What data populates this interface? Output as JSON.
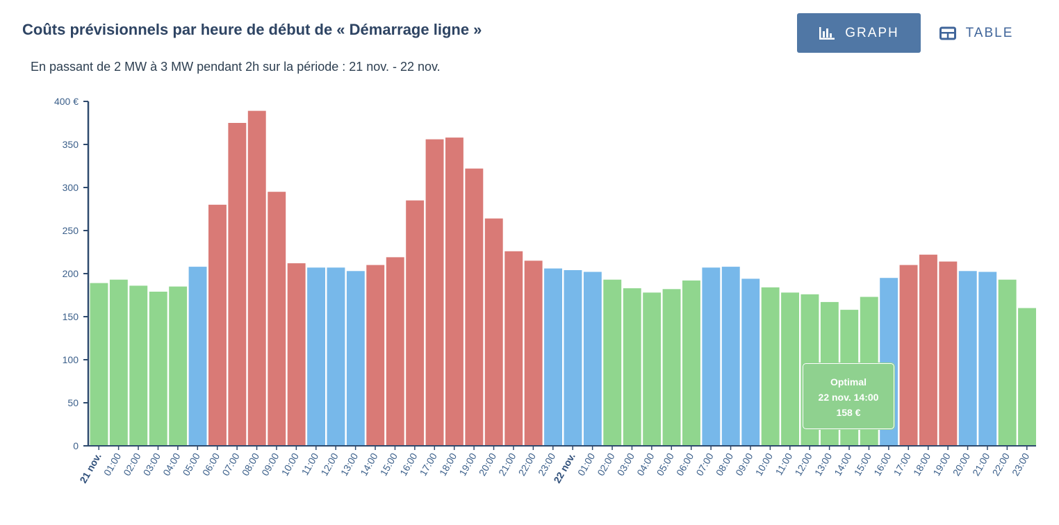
{
  "header": {
    "title": "Coûts prévisionnels par heure de début de « Démarrage ligne »",
    "subtitle": "En passant de 2 MW à 3 MW pendant 2h sur la période : 21 nov. - 22 nov."
  },
  "view_toggle": {
    "graph_label": "GRAPH",
    "table_label": "TABLE",
    "active": "graph"
  },
  "colors": {
    "green": "#90d68e",
    "blue": "#77b8ea",
    "red": "#d97a76",
    "axis": "#2e4a6e",
    "graph_button": "#5077a5"
  },
  "tooltip": {
    "title": "Optimal",
    "datetime": "22 nov. 14:00",
    "value": "158 €"
  },
  "chart_data": {
    "type": "bar",
    "title": "Coûts prévisionnels par heure de début de « Démarrage ligne »",
    "xlabel": "",
    "ylabel": "",
    "ylim": [
      0,
      400
    ],
    "yticks": [
      "0",
      "50",
      "100",
      "150",
      "200",
      "250",
      "300",
      "350",
      "400 €"
    ],
    "ytick_values": [
      0,
      50,
      100,
      150,
      200,
      250,
      300,
      350,
      400
    ],
    "grid": false,
    "categories": [
      "21 nov.",
      "01:00",
      "02:00",
      "03:00",
      "04:00",
      "05:00",
      "06:00",
      "07:00",
      "08:00",
      "09:00",
      "10:00",
      "11:00",
      "12:00",
      "13:00",
      "14:00",
      "15:00",
      "16:00",
      "17:00",
      "18:00",
      "19:00",
      "20:00",
      "21:00",
      "22:00",
      "23:00",
      "22 nov.",
      "01:00",
      "02:00",
      "03:00",
      "04:00",
      "05:00",
      "06:00",
      "07:00",
      "08:00",
      "09:00",
      "10:00",
      "11:00",
      "12:00",
      "13:00",
      "14:00",
      "15:00",
      "16:00",
      "17:00",
      "18:00",
      "19:00",
      "20:00",
      "21:00",
      "22:00",
      "23:00"
    ],
    "bold_categories": [
      "21 nov.",
      "22 nov."
    ],
    "values": [
      189,
      193,
      186,
      179,
      185,
      208,
      280,
      375,
      389,
      295,
      212,
      207,
      207,
      203,
      210,
      219,
      285,
      356,
      358,
      322,
      264,
      226,
      215,
      206,
      204,
      202,
      193,
      183,
      178,
      182,
      192,
      207,
      208,
      194,
      184,
      178,
      176,
      167,
      158,
      173,
      195,
      210,
      222,
      214,
      203,
      202,
      193,
      160
    ],
    "color_classes": [
      "green",
      "green",
      "green",
      "green",
      "green",
      "blue",
      "red",
      "red",
      "red",
      "red",
      "red",
      "blue",
      "blue",
      "blue",
      "red",
      "red",
      "red",
      "red",
      "red",
      "red",
      "red",
      "red",
      "red",
      "blue",
      "blue",
      "blue",
      "green",
      "green",
      "green",
      "green",
      "green",
      "blue",
      "blue",
      "blue",
      "green",
      "green",
      "green",
      "green",
      "green",
      "green",
      "blue",
      "red",
      "red",
      "red",
      "blue",
      "blue",
      "green",
      "green"
    ]
  }
}
